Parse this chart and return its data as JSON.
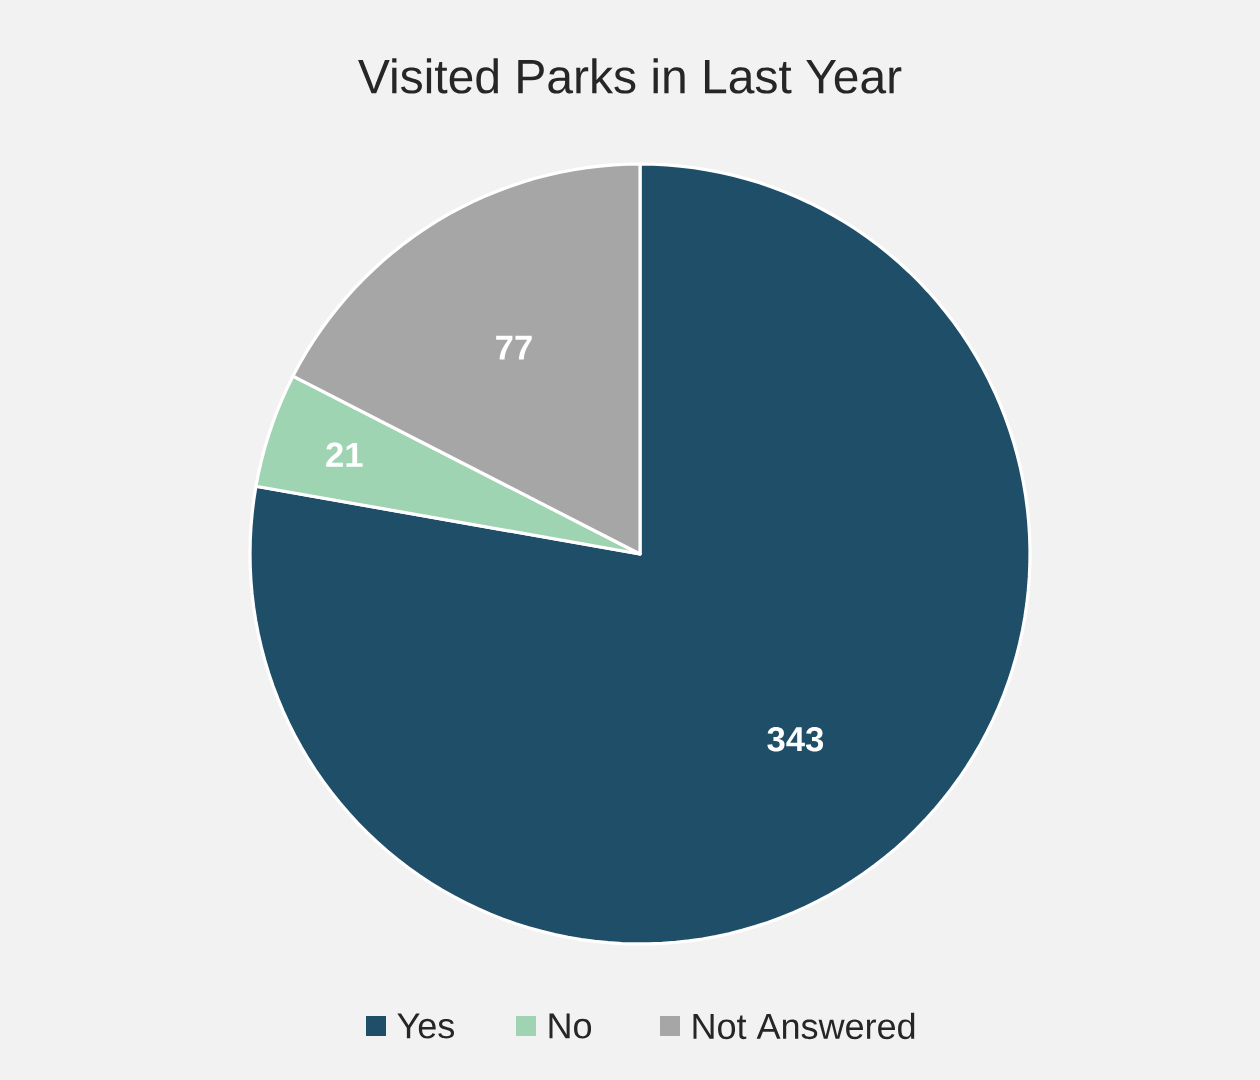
{
  "chart_data": {
    "type": "pie",
    "title": "Visited Parks in Last Year",
    "categories": [
      "Yes",
      "No",
      "Not Answered"
    ],
    "values": [
      343,
      21,
      77
    ],
    "colors": [
      "#1f4e69",
      "#9fd4b3",
      "#a6a6a6"
    ],
    "data_labels": true,
    "legend": "bottom"
  }
}
